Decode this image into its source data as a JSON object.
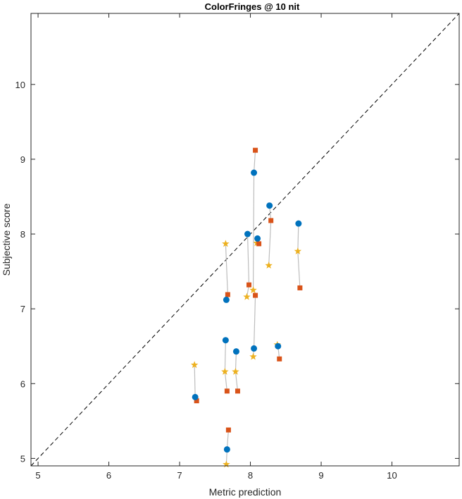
{
  "chart_data": {
    "type": "scatter",
    "title": "ColorFringes @ 10 nit",
    "xlabel": "Metric prediction",
    "ylabel": "Subjective score",
    "xlim": [
      4.9,
      10.95
    ],
    "ylim": [
      4.9,
      10.95
    ],
    "xticks": [
      5,
      6,
      7,
      8,
      9,
      10
    ],
    "yticks": [
      5,
      6,
      7,
      8,
      9,
      10
    ],
    "grid": false,
    "legend": "none",
    "identity_line": true,
    "colors": {
      "series1": "#0072BD",
      "series2": "#D95319",
      "series3": "#EDB120",
      "connector": "#BDBDBD",
      "identity": "#000000"
    },
    "groups": [
      {
        "x": 7.22,
        "circle": 5.82,
        "square": 5.77,
        "star": 6.25
      },
      {
        "x": 7.67,
        "circle": 5.12,
        "square": 5.38,
        "star": 4.92
      },
      {
        "x": 7.65,
        "circle": 6.58,
        "square": 5.9,
        "star": 6.16
      },
      {
        "x": 7.66,
        "circle": 7.12,
        "square": 7.19,
        "star": 7.87
      },
      {
        "x": 7.8,
        "circle": 6.43,
        "square": 5.9,
        "star": 6.16
      },
      {
        "x": 7.96,
        "circle": 8.0,
        "square": 7.32,
        "star": 7.16
      },
      {
        "x": 8.05,
        "circle": 8.82,
        "square": 9.12,
        "star": 7.25
      },
      {
        "x": 8.05,
        "circle": 6.47,
        "square": 7.18,
        "star": 6.36
      },
      {
        "x": 8.1,
        "circle": 7.94,
        "square": 7.87,
        "star": 7.88
      },
      {
        "x": 8.27,
        "circle": 8.38,
        "square": 8.18,
        "star": 7.58
      },
      {
        "x": 8.39,
        "circle": 6.5,
        "square": 6.33,
        "star": 6.52
      },
      {
        "x": 8.68,
        "circle": 8.14,
        "square": 7.28,
        "star": 7.77
      }
    ]
  }
}
